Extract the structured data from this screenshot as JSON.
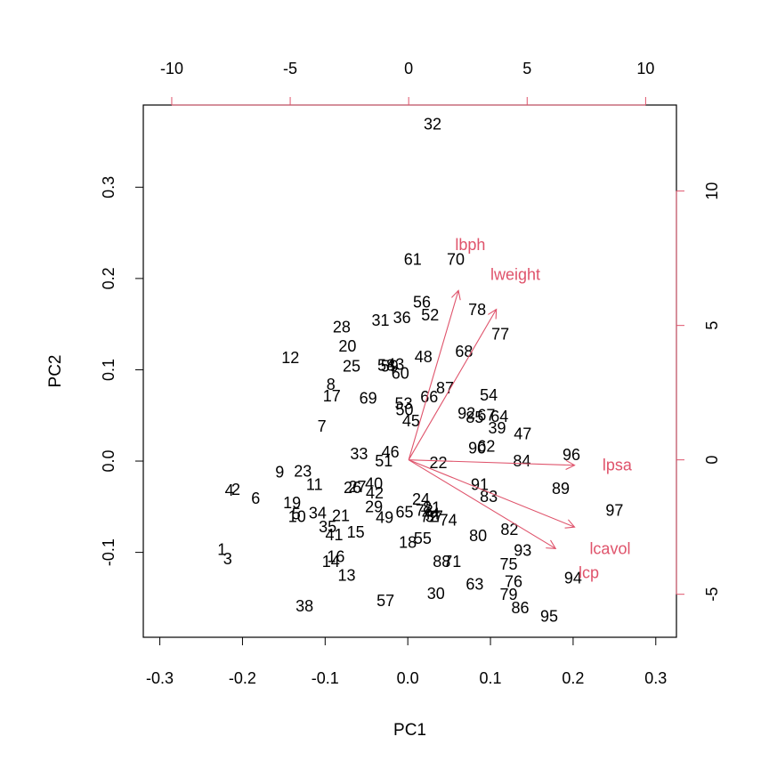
{
  "chart_data": {
    "type": "scatter",
    "subtype": "biplot",
    "title": "",
    "xlabel": "PC1",
    "ylabel": "PC2",
    "xlim": [
      -0.32,
      0.325
    ],
    "ylim": [
      -0.193,
      0.39
    ],
    "x_ticks": [
      "-0.3",
      "-0.2",
      "-0.1",
      "0.0",
      "0.1",
      "0.2",
      "0.3"
    ],
    "y_ticks": [
      "-0.1",
      "0.0",
      "0.1",
      "0.2",
      "0.3"
    ],
    "secondary_xlim": [
      -11.2,
      11.3
    ],
    "secondary_ylim": [
      -6.6,
      13.2
    ],
    "secondary_x_ticks": [
      "-10",
      "-5",
      "0",
      "5",
      "10"
    ],
    "secondary_y_ticks": [
      "-5",
      "0",
      "5",
      "10"
    ],
    "grid": false,
    "colors": {
      "observations": "#000000",
      "loadings": "#DF536B",
      "frame": "#000000"
    },
    "observations": [
      {
        "label": "1",
        "x": -0.225,
        "y": -0.097
      },
      {
        "label": "2",
        "x": -0.208,
        "y": -0.031
      },
      {
        "label": "3",
        "x": -0.218,
        "y": -0.107
      },
      {
        "label": "4",
        "x": -0.216,
        "y": -0.032
      },
      {
        "label": "5",
        "x": -0.135,
        "y": -0.058
      },
      {
        "label": "6",
        "x": -0.184,
        "y": -0.041
      },
      {
        "label": "7",
        "x": -0.104,
        "y": 0.038
      },
      {
        "label": "8",
        "x": -0.093,
        "y": 0.084
      },
      {
        "label": "9",
        "x": -0.155,
        "y": -0.012
      },
      {
        "label": "10",
        "x": -0.134,
        "y": -0.061
      },
      {
        "label": "11",
        "x": -0.113,
        "y": -0.026
      },
      {
        "label": "12",
        "x": -0.142,
        "y": 0.113
      },
      {
        "label": "13",
        "x": -0.074,
        "y": -0.125
      },
      {
        "label": "14",
        "x": -0.093,
        "y": -0.11
      },
      {
        "label": "15",
        "x": -0.063,
        "y": -0.078
      },
      {
        "label": "16",
        "x": -0.087,
        "y": -0.105
      },
      {
        "label": "17",
        "x": -0.092,
        "y": 0.071
      },
      {
        "label": "18",
        "x": 0.0,
        "y": -0.089
      },
      {
        "label": "19",
        "x": -0.14,
        "y": -0.046
      },
      {
        "label": "20",
        "x": -0.073,
        "y": 0.126
      },
      {
        "label": "21",
        "x": -0.081,
        "y": -0.06
      },
      {
        "label": "22",
        "x": 0.037,
        "y": -0.002
      },
      {
        "label": "23",
        "x": -0.127,
        "y": -0.011
      },
      {
        "label": "24",
        "x": 0.016,
        "y": -0.042
      },
      {
        "label": "25",
        "x": -0.068,
        "y": 0.104
      },
      {
        "label": "26",
        "x": -0.067,
        "y": -0.029
      },
      {
        "label": "27",
        "x": -0.061,
        "y": -0.028
      },
      {
        "label": "28",
        "x": -0.08,
        "y": 0.147
      },
      {
        "label": "29",
        "x": -0.041,
        "y": -0.05
      },
      {
        "label": "30",
        "x": 0.034,
        "y": -0.145
      },
      {
        "label": "31",
        "x": -0.033,
        "y": 0.154
      },
      {
        "label": "32",
        "x": 0.03,
        "y": 0.369
      },
      {
        "label": "33",
        "x": -0.059,
        "y": 0.008
      },
      {
        "label": "34",
        "x": -0.109,
        "y": -0.057
      },
      {
        "label": "35",
        "x": -0.097,
        "y": -0.072
      },
      {
        "label": "36",
        "x": -0.007,
        "y": 0.157
      },
      {
        "label": "37",
        "x": 0.032,
        "y": -0.061
      },
      {
        "label": "38",
        "x": -0.125,
        "y": -0.159
      },
      {
        "label": "39",
        "x": 0.108,
        "y": 0.036
      },
      {
        "label": "40",
        "x": -0.041,
        "y": -0.025
      },
      {
        "label": "41",
        "x": -0.089,
        "y": -0.081
      },
      {
        "label": "42",
        "x": -0.04,
        "y": -0.035
      },
      {
        "label": "43",
        "x": -0.015,
        "y": 0.106
      },
      {
        "label": "44",
        "x": 0.028,
        "y": -0.058
      },
      {
        "label": "45",
        "x": 0.004,
        "y": 0.044
      },
      {
        "label": "46",
        "x": -0.021,
        "y": 0.01
      },
      {
        "label": "47",
        "x": 0.139,
        "y": 0.03
      },
      {
        "label": "48",
        "x": 0.019,
        "y": 0.114
      },
      {
        "label": "49",
        "x": -0.028,
        "y": -0.062
      },
      {
        "label": "50",
        "x": -0.004,
        "y": 0.056
      },
      {
        "label": "51",
        "x": -0.029,
        "y": 0.0
      },
      {
        "label": "52",
        "x": 0.027,
        "y": 0.16
      },
      {
        "label": "53",
        "x": -0.005,
        "y": 0.063
      },
      {
        "label": "54",
        "x": 0.098,
        "y": 0.072
      },
      {
        "label": "55",
        "x": 0.018,
        "y": -0.085
      },
      {
        "label": "56",
        "x": 0.017,
        "y": 0.174
      },
      {
        "label": "57",
        "x": -0.027,
        "y": -0.153
      },
      {
        "label": "58",
        "x": -0.026,
        "y": 0.105
      },
      {
        "label": "59",
        "x": -0.022,
        "y": 0.104
      },
      {
        "label": "60",
        "x": -0.009,
        "y": 0.096
      },
      {
        "label": "61",
        "x": 0.006,
        "y": 0.221
      },
      {
        "label": "62",
        "x": 0.095,
        "y": 0.016
      },
      {
        "label": "63",
        "x": 0.081,
        "y": -0.135
      },
      {
        "label": "64",
        "x": 0.111,
        "y": 0.049
      },
      {
        "label": "65",
        "x": -0.004,
        "y": -0.056
      },
      {
        "label": "66",
        "x": 0.026,
        "y": 0.07
      },
      {
        "label": "67",
        "x": 0.095,
        "y": 0.05
      },
      {
        "label": "68",
        "x": 0.068,
        "y": 0.12
      },
      {
        "label": "69",
        "x": -0.048,
        "y": 0.069
      },
      {
        "label": "70",
        "x": 0.058,
        "y": 0.221
      },
      {
        "label": "71",
        "x": 0.054,
        "y": -0.11
      },
      {
        "label": "72",
        "x": 0.026,
        "y": -0.061
      },
      {
        "label": "73",
        "x": 0.02,
        "y": -0.054
      },
      {
        "label": "74",
        "x": 0.049,
        "y": -0.065
      },
      {
        "label": "75",
        "x": 0.122,
        "y": -0.113
      },
      {
        "label": "76",
        "x": 0.128,
        "y": -0.132
      },
      {
        "label": "77",
        "x": 0.112,
        "y": 0.139
      },
      {
        "label": "78",
        "x": 0.084,
        "y": 0.166
      },
      {
        "label": "79",
        "x": 0.122,
        "y": -0.146
      },
      {
        "label": "80",
        "x": 0.085,
        "y": -0.082
      },
      {
        "label": "81",
        "x": 0.029,
        "y": -0.051
      },
      {
        "label": "82",
        "x": 0.123,
        "y": -0.075
      },
      {
        "label": "83",
        "x": 0.098,
        "y": -0.039
      },
      {
        "label": "84",
        "x": 0.138,
        "y": 0.0
      },
      {
        "label": "85",
        "x": 0.081,
        "y": 0.048
      },
      {
        "label": "86",
        "x": 0.136,
        "y": -0.161
      },
      {
        "label": "87",
        "x": 0.045,
        "y": 0.08
      },
      {
        "label": "88",
        "x": 0.041,
        "y": -0.11
      },
      {
        "label": "89",
        "x": 0.185,
        "y": -0.03
      },
      {
        "label": "90",
        "x": 0.084,
        "y": 0.014
      },
      {
        "label": "91",
        "x": 0.087,
        "y": -0.026
      },
      {
        "label": "92",
        "x": 0.071,
        "y": 0.052
      },
      {
        "label": "93",
        "x": 0.139,
        "y": -0.098
      },
      {
        "label": "94",
        "x": 0.2,
        "y": -0.128
      },
      {
        "label": "95",
        "x": 0.171,
        "y": -0.17
      },
      {
        "label": "96",
        "x": 0.198,
        "y": 0.007
      },
      {
        "label": "97",
        "x": 0.25,
        "y": -0.054
      }
    ],
    "loadings": [
      {
        "name": "lcavol",
        "x": 7.0,
        "y": -2.5
      },
      {
        "name": "lcp",
        "x": 6.2,
        "y": -3.3
      },
      {
        "name": "lpsa",
        "x": 7.0,
        "y": -0.2
      },
      {
        "name": "lbph",
        "x": 2.1,
        "y": 6.3
      },
      {
        "name": "lweight",
        "x": 3.7,
        "y": 5.6
      }
    ],
    "loading_label_positions": [
      {
        "name": "lcavol",
        "x": 8.5,
        "y": -3.3
      },
      {
        "name": "lcp",
        "x": 7.6,
        "y": -4.2
      },
      {
        "name": "lpsa",
        "x": 8.8,
        "y": -0.2
      },
      {
        "name": "lbph",
        "x": 2.6,
        "y": 8.0
      },
      {
        "name": "lweight",
        "x": 4.5,
        "y": 6.9
      }
    ]
  }
}
